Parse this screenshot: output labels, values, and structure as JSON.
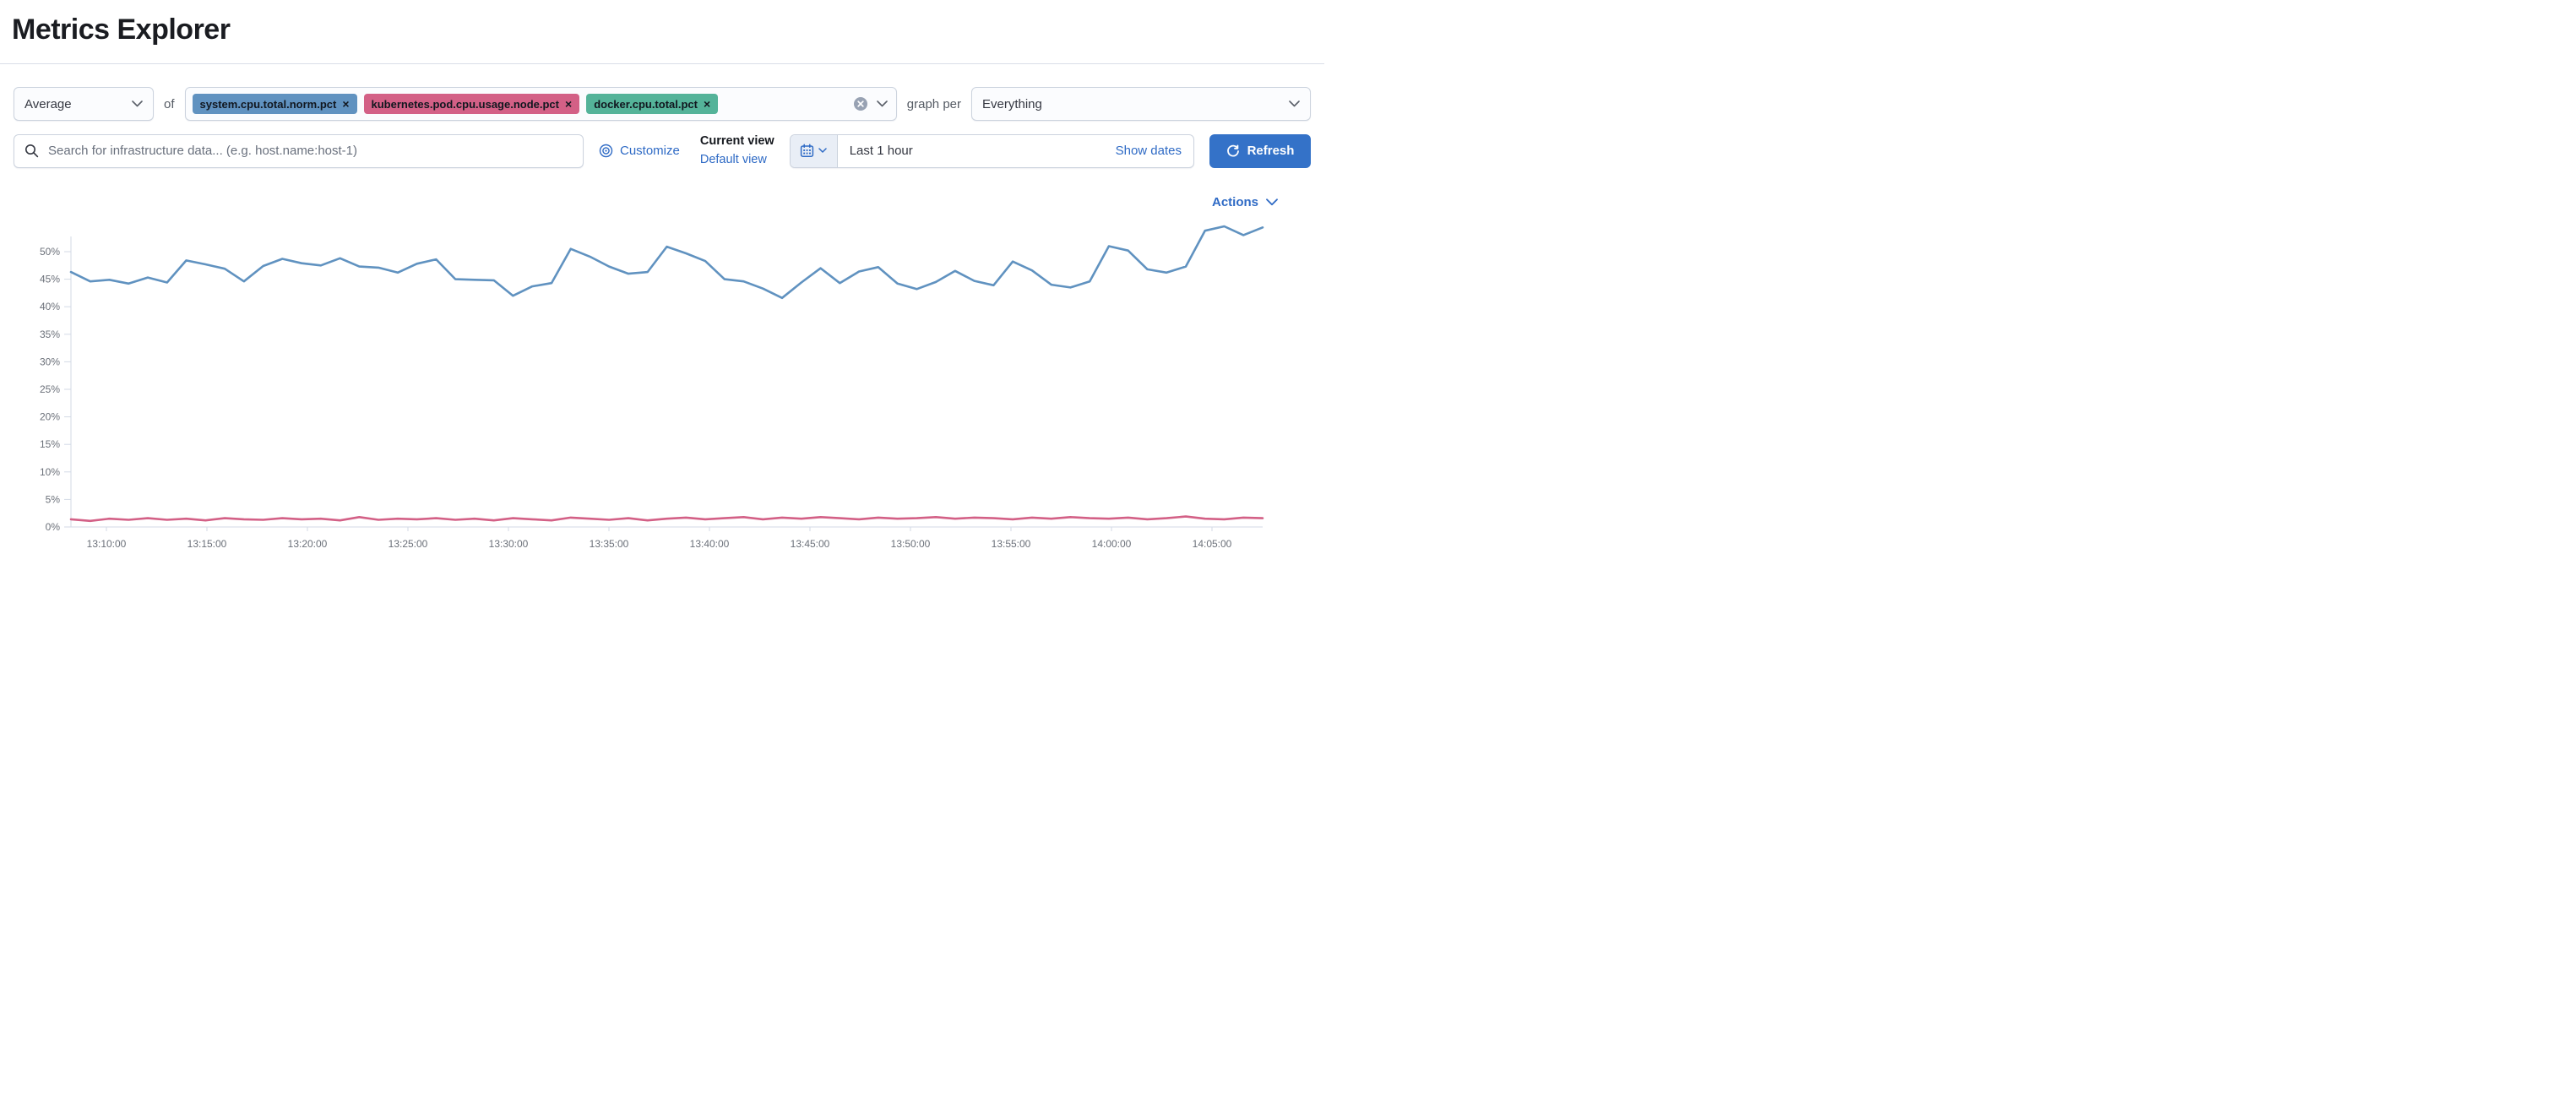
{
  "page": {
    "title": "Metrics Explorer"
  },
  "toolbar": {
    "aggregation": {
      "value": "Average"
    },
    "of_label": "of",
    "metrics": [
      {
        "label": "system.cpu.total.norm.pct",
        "color": "#6092C0"
      },
      {
        "label": "kubernetes.pod.cpu.usage.node.pct",
        "color": "#D36086"
      },
      {
        "label": "docker.cpu.total.pct",
        "color": "#54B399"
      }
    ],
    "graph_per_label": "graph per",
    "group_by": {
      "value": "Everything"
    }
  },
  "searchbar": {
    "placeholder": "Search for infrastructure data... (e.g. host.name:host-1)",
    "customize_label": "Customize",
    "current_view_label": "Current view",
    "default_view_label": "Default view",
    "time_range": "Last 1 hour",
    "show_dates_label": "Show dates",
    "refresh_label": "Refresh"
  },
  "actions_label": "Actions",
  "colors": {
    "link_blue": "#2e6ac5",
    "button_blue": "#3472c8",
    "axis_text": "#6b7079",
    "axis_line": "#d3dae6"
  },
  "icons": {
    "search": "magnifier",
    "customize": "bullseye",
    "calendar": "calendar",
    "refresh": "clockwise-arrow",
    "clear": "circled-x",
    "chevron": "chevron-down",
    "remove_metric": "x"
  },
  "chart_data": {
    "type": "line",
    "title": "",
    "xlabel": "",
    "ylabel": "",
    "legend": "none",
    "grid": "off",
    "ylim": [
      0,
      56
    ],
    "y_tick_labels": [
      "0%",
      "5%",
      "10%",
      "15%",
      "20%",
      "25%",
      "30%",
      "35%",
      "40%",
      "45%",
      "50%"
    ],
    "x_tick_labels": [
      "13:10:00",
      "13:15:00",
      "13:20:00",
      "13:25:00",
      "13:30:00",
      "13:35:00",
      "13:40:00",
      "13:45:00",
      "13:50:00",
      "13:55:00",
      "14:00:00",
      "14:05:00"
    ],
    "x_range": [
      "13:08:00",
      "14:07:30"
    ],
    "series": [
      {
        "name": "system.cpu.total.norm.pct",
        "color": "#6092C0",
        "unit": "%",
        "values": [
          46.3,
          44.6,
          44.9,
          44.2,
          45.3,
          44.4,
          48.4,
          47.7,
          46.9,
          44.6,
          47.4,
          48.7,
          47.9,
          47.5,
          48.8,
          47.3,
          47.1,
          46.2,
          47.8,
          48.6,
          45.0,
          44.9,
          44.8,
          42.0,
          43.7,
          44.3,
          50.5,
          49.1,
          47.3,
          46.0,
          46.3,
          50.9,
          49.7,
          48.3,
          45.0,
          44.6,
          43.3,
          41.6,
          44.4,
          47.0,
          44.3,
          46.4,
          47.2,
          44.2,
          43.2,
          44.5,
          46.5,
          44.7,
          43.9,
          48.2,
          46.6,
          44.0,
          43.5,
          44.6,
          51.0,
          50.2,
          46.8,
          46.2,
          47.3,
          53.8,
          54.6,
          53.0,
          54.4
        ]
      },
      {
        "name": "kubernetes.pod.cpu.usage.node.pct",
        "color": "#D36086",
        "unit": "%",
        "values": [
          1.4,
          1.1,
          1.5,
          1.3,
          1.6,
          1.3,
          1.5,
          1.2,
          1.6,
          1.4,
          1.3,
          1.6,
          1.4,
          1.5,
          1.2,
          1.8,
          1.3,
          1.5,
          1.4,
          1.6,
          1.3,
          1.5,
          1.2,
          1.6,
          1.4,
          1.2,
          1.7,
          1.5,
          1.3,
          1.6,
          1.2,
          1.5,
          1.7,
          1.4,
          1.6,
          1.8,
          1.4,
          1.7,
          1.5,
          1.8,
          1.6,
          1.4,
          1.7,
          1.5,
          1.6,
          1.8,
          1.5,
          1.7,
          1.6,
          1.4,
          1.7,
          1.5,
          1.8,
          1.6,
          1.5,
          1.7,
          1.4,
          1.6,
          1.9,
          1.5,
          1.4,
          1.7,
          1.6
        ]
      }
    ]
  }
}
